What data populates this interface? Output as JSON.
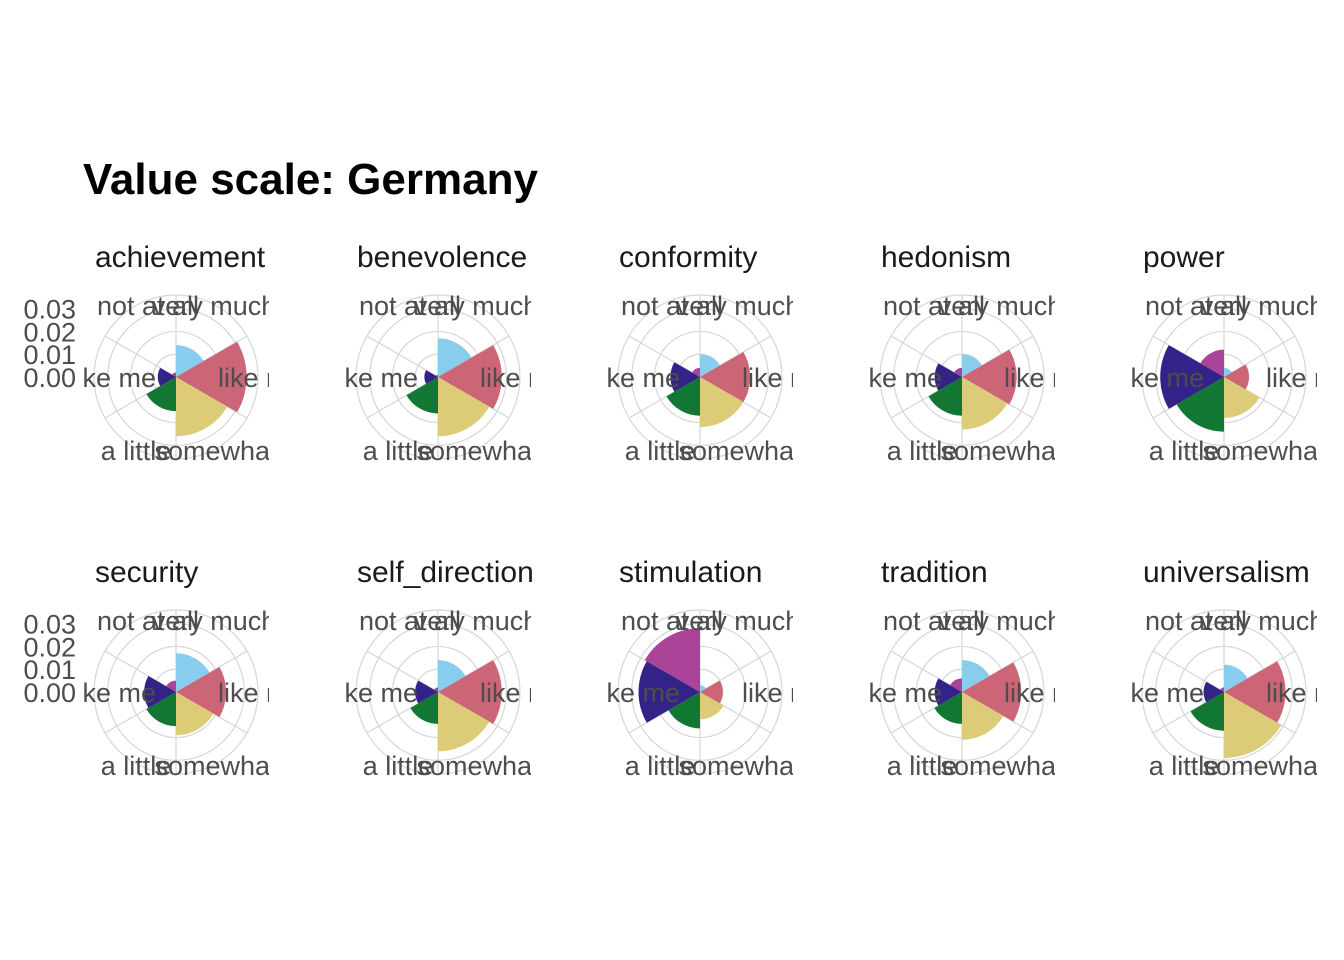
{
  "chart_data": {
    "type": "polar-bar",
    "title": "Value scale: Germany",
    "radial_axis": {
      "ticks": [
        "0.00",
        "0.01",
        "0.02",
        "0.03"
      ],
      "lim": [
        0,
        0.036
      ]
    },
    "categories": [
      "very much like me",
      "like me",
      "somewhat like me",
      "a little like me",
      "not like me",
      "not at all like me"
    ],
    "category_labels": [
      "very much",
      "like m",
      "somewhat",
      "a little",
      "ke me",
      "not at all"
    ],
    "colors": [
      "#88CCEE",
      "#CC6677",
      "#DDCC77",
      "#117733",
      "#332288",
      "#AA4499"
    ],
    "panels": [
      {
        "name": "achievement",
        "values": [
          0.014,
          0.031,
          0.026,
          0.015,
          0.008,
          0.002
        ]
      },
      {
        "name": "benevolence",
        "values": [
          0.017,
          0.028,
          0.026,
          0.016,
          0.006,
          0.001
        ]
      },
      {
        "name": "conformity",
        "values": [
          0.01,
          0.022,
          0.022,
          0.017,
          0.013,
          0.004
        ]
      },
      {
        "name": "hedonism",
        "values": [
          0.01,
          0.024,
          0.023,
          0.017,
          0.012,
          0.004
        ]
      },
      {
        "name": "power",
        "values": [
          0.004,
          0.011,
          0.018,
          0.024,
          0.028,
          0.012
        ]
      },
      {
        "name": "security",
        "values": [
          0.017,
          0.022,
          0.019,
          0.015,
          0.014,
          0.005
        ]
      },
      {
        "name": "self_direction",
        "values": [
          0.014,
          0.028,
          0.026,
          0.014,
          0.01,
          0.002
        ]
      },
      {
        "name": "stimulation",
        "values": [
          0.003,
          0.01,
          0.012,
          0.016,
          0.027,
          0.028
        ]
      },
      {
        "name": "tradition",
        "values": [
          0.014,
          0.026,
          0.021,
          0.014,
          0.012,
          0.006
        ]
      },
      {
        "name": "universalism",
        "values": [
          0.012,
          0.027,
          0.029,
          0.017,
          0.009,
          0.002
        ]
      }
    ]
  }
}
